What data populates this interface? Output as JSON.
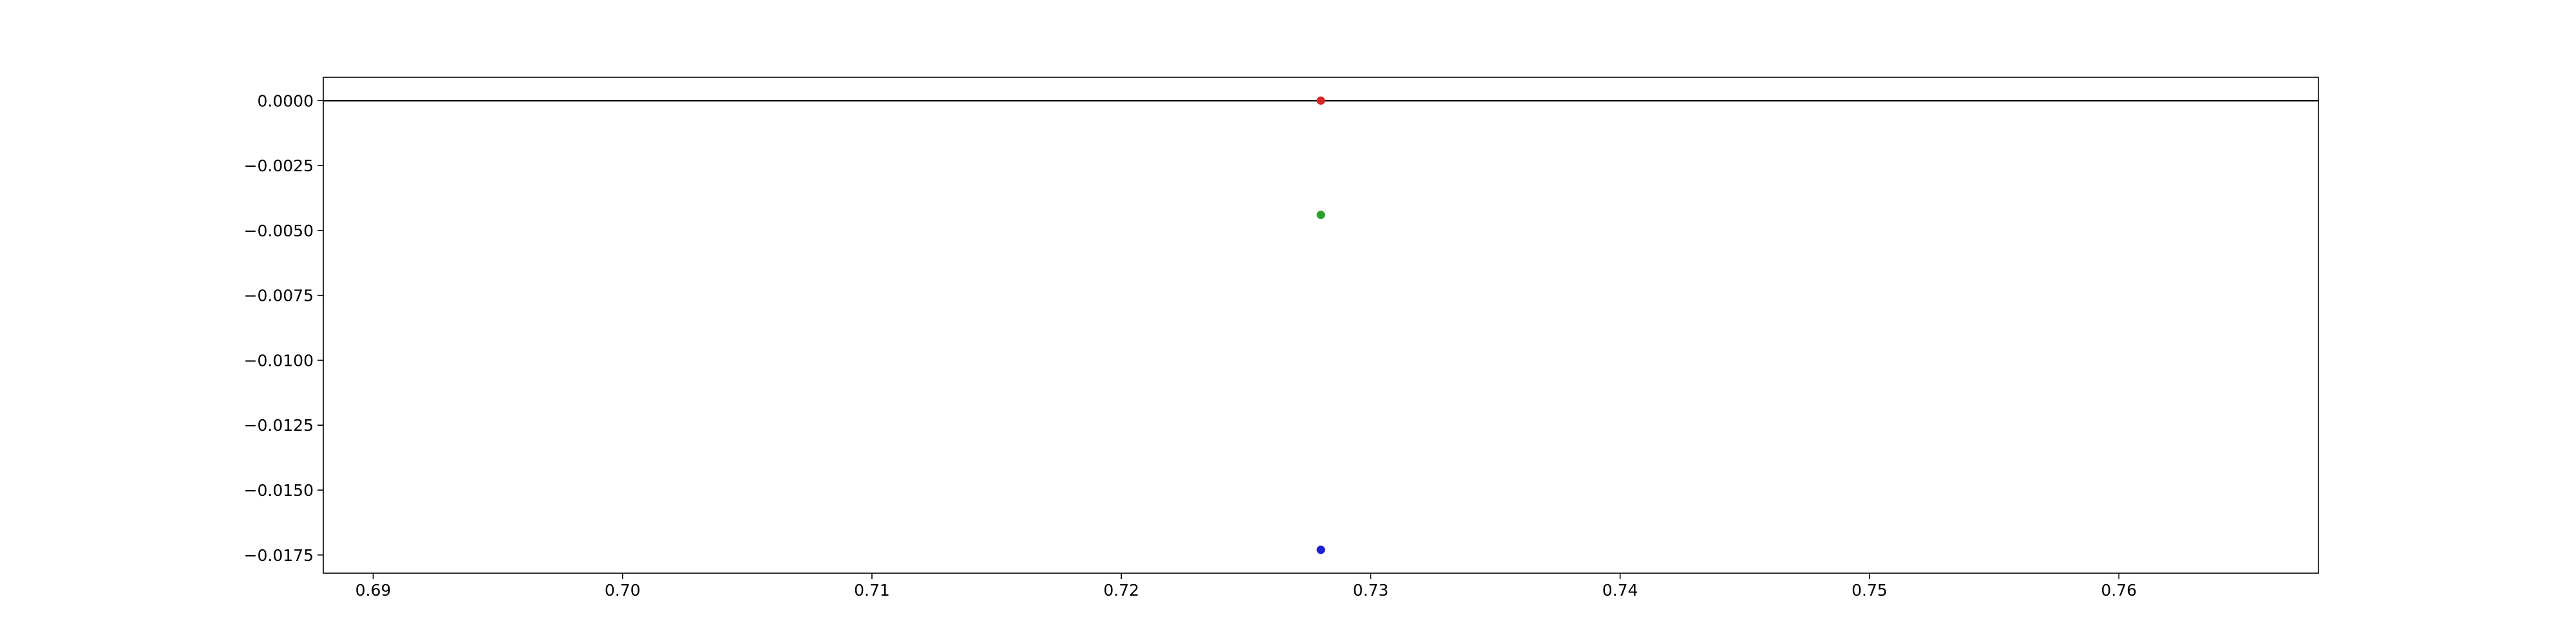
{
  "chart_data": {
    "type": "scatter",
    "title": "",
    "xlabel": "",
    "ylabel": "",
    "xlim": [
      0.688,
      0.768
    ],
    "ylim": [
      -0.0182,
      0.0009
    ],
    "grid": false,
    "xticks": [
      0.69,
      0.7,
      0.71,
      0.72,
      0.73,
      0.74,
      0.75,
      0.76
    ],
    "xtick_labels": [
      "0.69",
      "0.70",
      "0.71",
      "0.72",
      "0.73",
      "0.74",
      "0.75",
      "0.76"
    ],
    "yticks": [
      0.0,
      -0.0025,
      -0.005,
      -0.0075,
      -0.01,
      -0.0125,
      -0.015,
      -0.0175
    ],
    "ytick_labels": [
      "0.0000",
      "−0.0025",
      "−0.0050",
      "−0.0075",
      "−0.0100",
      "−0.0125",
      "−0.0150",
      "−0.0175"
    ],
    "hline": {
      "y": 0.0,
      "color": "#000000"
    },
    "series": [
      {
        "color": "#d62728",
        "points": [
          {
            "x": 0.728,
            "y": 0.0
          }
        ]
      },
      {
        "color": "#2ca02c",
        "points": [
          {
            "x": 0.728,
            "y": -0.0044
          }
        ]
      },
      {
        "color": "#1f1fd6",
        "points": [
          {
            "x": 0.728,
            "y": -0.0173
          }
        ]
      }
    ]
  }
}
